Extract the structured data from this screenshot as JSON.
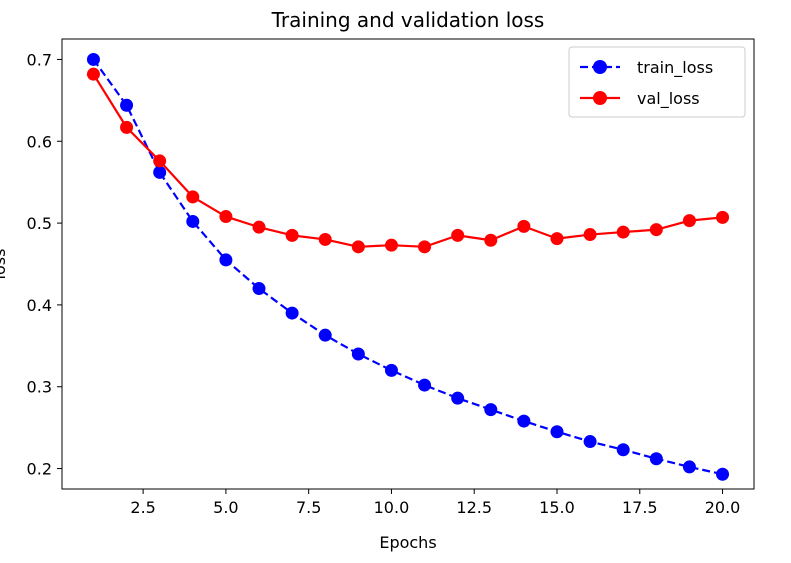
{
  "chart_data": {
    "type": "line",
    "title": "Training and validation loss",
    "xlabel": "Epochs",
    "ylabel": "loss",
    "xlim": [
      0.05,
      20.95
    ],
    "ylim": [
      0.175,
      0.725
    ],
    "xticks": [
      2.5,
      5.0,
      7.5,
      10.0,
      12.5,
      15.0,
      17.5,
      20.0
    ],
    "xtick_labels": [
      "2.5",
      "5.0",
      "7.5",
      "10.0",
      "12.5",
      "15.0",
      "17.5",
      "20.0"
    ],
    "yticks": [
      0.2,
      0.3,
      0.4,
      0.5,
      0.6,
      0.7
    ],
    "ytick_labels": [
      "0.2",
      "0.3",
      "0.4",
      "0.5",
      "0.6",
      "0.7"
    ],
    "grid": false,
    "legend_position": "top-right",
    "x": [
      1,
      2,
      3,
      4,
      5,
      6,
      7,
      8,
      9,
      10,
      11,
      12,
      13,
      14,
      15,
      16,
      17,
      18,
      19,
      20
    ],
    "series": [
      {
        "name": "train_loss",
        "color": "#0000ff",
        "linestyle": "dashed",
        "marker": "circle",
        "values": [
          0.7,
          0.644,
          0.562,
          0.502,
          0.455,
          0.42,
          0.39,
          0.363,
          0.34,
          0.32,
          0.302,
          0.286,
          0.272,
          0.258,
          0.245,
          0.233,
          0.223,
          0.212,
          0.202,
          0.193
        ]
      },
      {
        "name": "val_loss",
        "color": "#ff0000",
        "linestyle": "solid",
        "marker": "circle",
        "values": [
          0.682,
          0.617,
          0.576,
          0.532,
          0.508,
          0.495,
          0.485,
          0.48,
          0.471,
          0.473,
          0.471,
          0.485,
          0.479,
          0.496,
          0.481,
          0.486,
          0.489,
          0.492,
          0.503,
          0.507
        ]
      }
    ]
  }
}
